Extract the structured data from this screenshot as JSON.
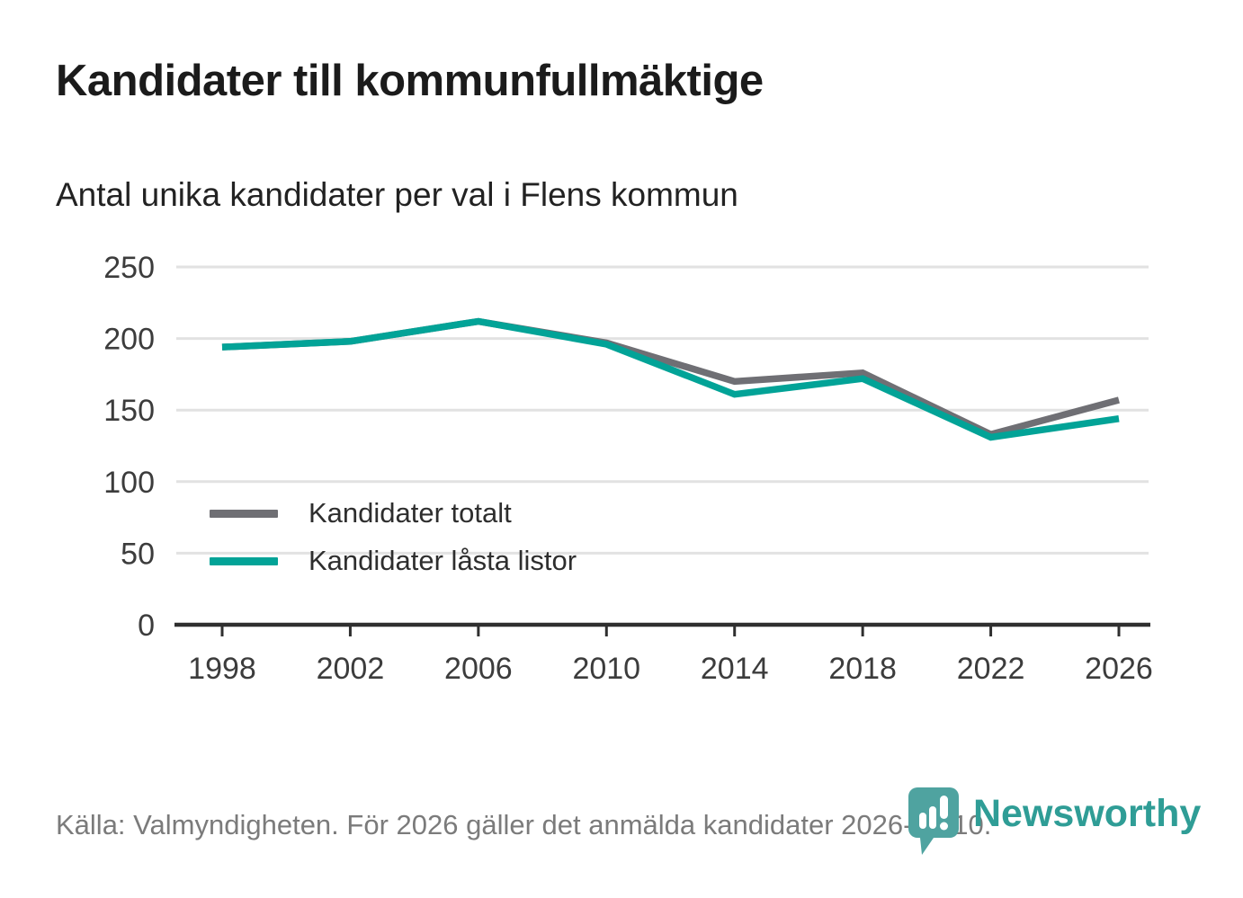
{
  "title": "Kandidater till kommunfullmäktige",
  "subtitle": "Antal unika kandidater per val i Flens kommun",
  "footer": {
    "source": "Källa: Valmyndigheten. För 2026 gäller det anmälda kandidater 2026-04-10."
  },
  "logo": {
    "name": "Newsworthy",
    "icon": "newsworthy-speech-bubble-barchart-icon",
    "bubble_color": "#4fa3a0",
    "text_color": "#2f9d96"
  },
  "chart_data": {
    "type": "line",
    "title": "Kandidater till kommunfullmäktige",
    "subtitle": "Antal unika kandidater per val i Flens kommun",
    "x": [
      1998,
      2002,
      2006,
      2010,
      2014,
      2018,
      2022,
      2026
    ],
    "series": [
      {
        "name": "Kandidater totalt",
        "color": "#6f6f74",
        "values": [
          194,
          198,
          212,
          197,
          170,
          176,
          133,
          157
        ]
      },
      {
        "name": "Kandidater låsta listor",
        "color": "#02a397",
        "values": [
          194,
          198,
          212,
          196,
          161,
          172,
          131,
          144
        ]
      }
    ],
    "xlabel": "",
    "ylabel": "",
    "ylim": [
      0,
      250
    ],
    "yticks": [
      0,
      50,
      100,
      150,
      200,
      250
    ],
    "grid": true,
    "gridline_color": "#e2e2e2",
    "axis_color": "#2f2f2f",
    "tick_label_color": "#3c3c3c",
    "legend_position": "inside-bottom-left"
  }
}
